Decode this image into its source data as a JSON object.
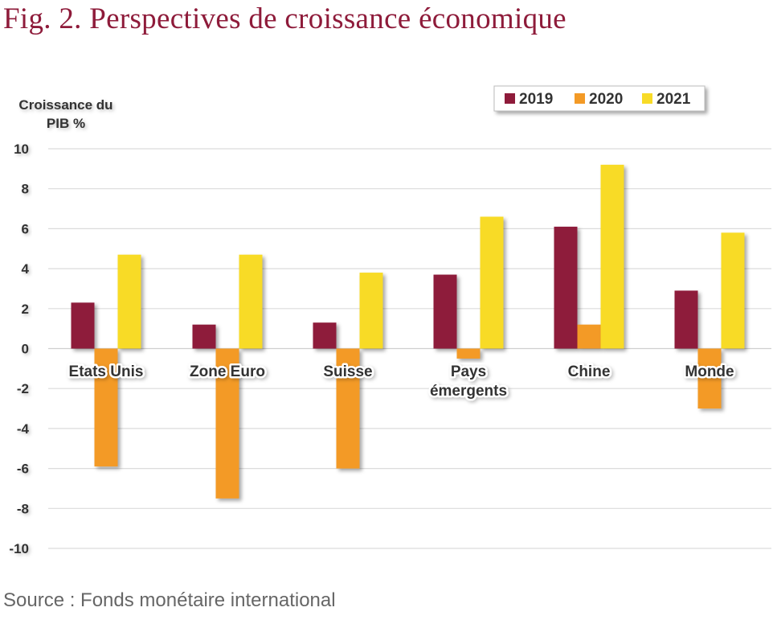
{
  "figure": {
    "title": "Fig. 2. Perspectives de croissance économique",
    "source": "Source : Fonds monétaire international"
  },
  "chart_data": {
    "type": "bar",
    "ylabel": [
      "Croissance du",
      "PIB %"
    ],
    "ylim": [
      -10,
      10
    ],
    "yticks": [
      10,
      8,
      6,
      4,
      2,
      0,
      -2,
      -4,
      -6,
      -8,
      -10
    ],
    "grid": true,
    "legend_position": "top-right",
    "categories": [
      [
        "Etats Unis"
      ],
      [
        "Zone Euro"
      ],
      [
        "Suisse"
      ],
      [
        "Pays",
        "émergents"
      ],
      [
        "Chine"
      ],
      [
        "Monde"
      ]
    ],
    "series": [
      {
        "name": "2019",
        "color": "#8e1b3a",
        "values": [
          2.3,
          1.2,
          1.3,
          3.7,
          6.1,
          2.9
        ]
      },
      {
        "name": "2020",
        "color": "#f39a26",
        "values": [
          -5.9,
          -7.5,
          -6.0,
          -0.5,
          1.2,
          -3.0
        ]
      },
      {
        "name": "2021",
        "color": "#f8db27",
        "values": [
          4.7,
          4.7,
          3.8,
          6.6,
          9.2,
          5.8
        ]
      }
    ]
  }
}
